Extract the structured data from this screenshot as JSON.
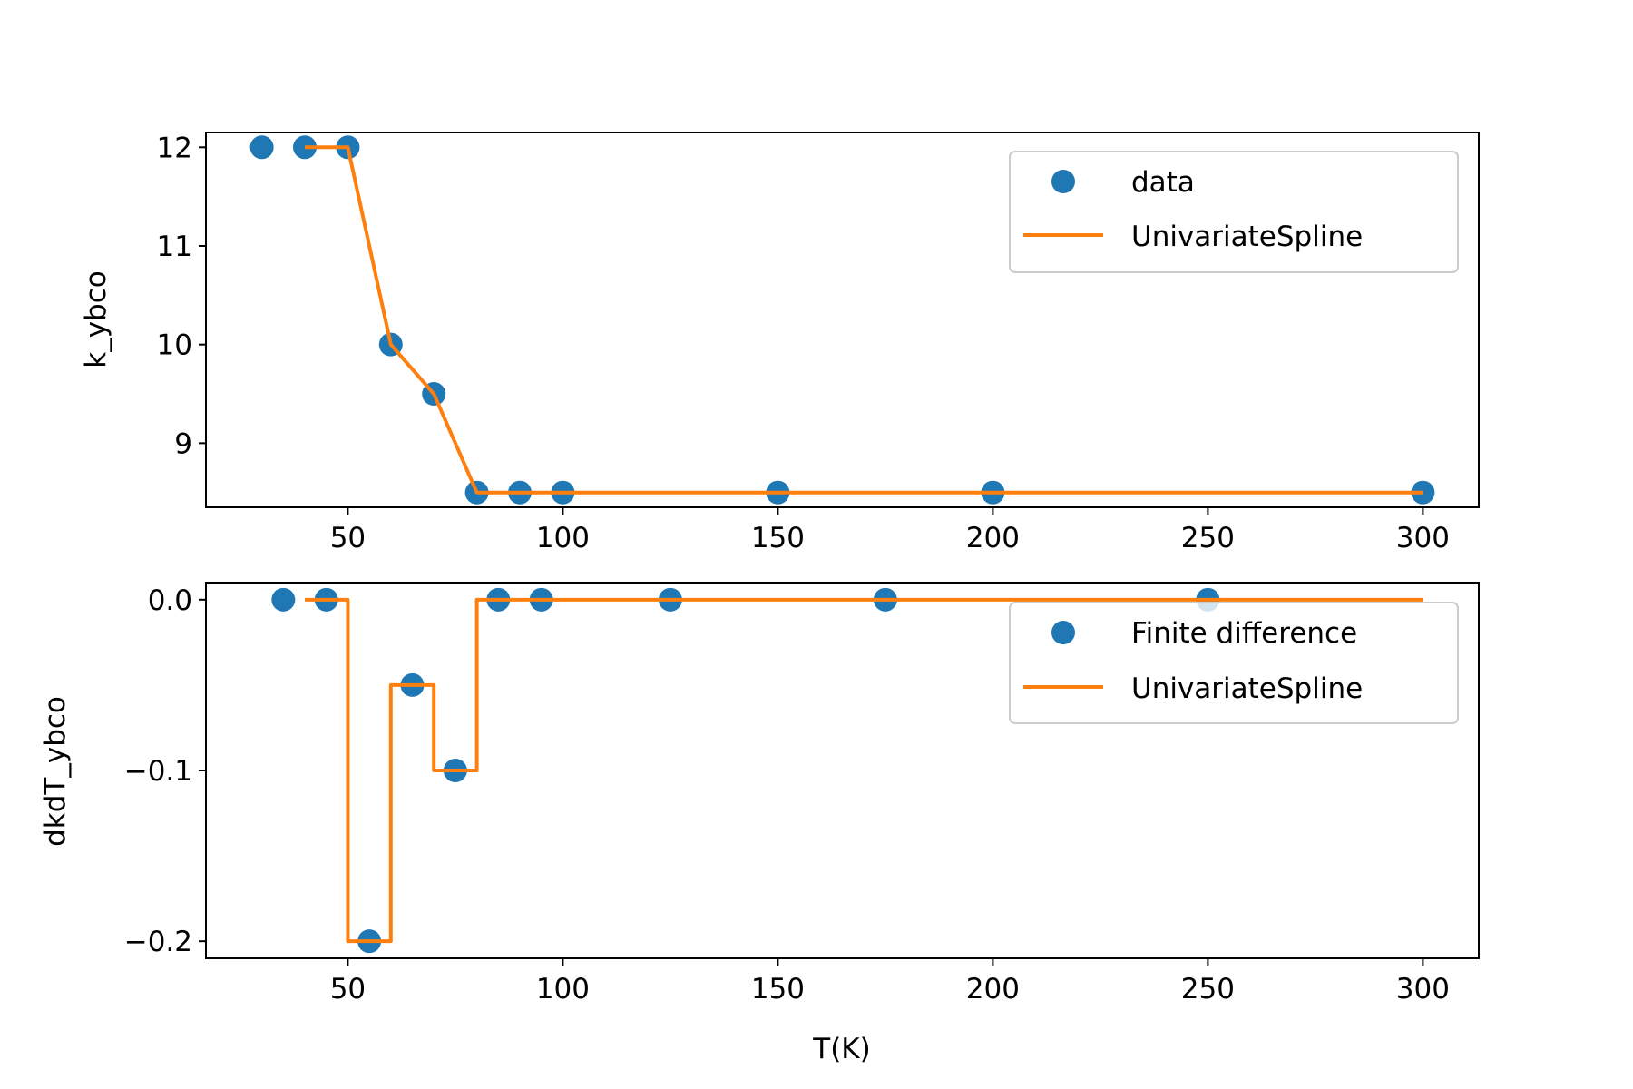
{
  "colors": {
    "scatter": "#1f77b4",
    "line": "#ff7f0e",
    "axes": "#000000",
    "legend_border": "#cccccc"
  },
  "chart_data": [
    {
      "type": "line",
      "title": "",
      "xlabel": "",
      "ylabel": "k_ybco",
      "xlim": [
        17,
        313
      ],
      "ylim": [
        8.35,
        12.15
      ],
      "xticks": [
        50,
        100,
        150,
        200,
        250,
        300
      ],
      "yticks": [
        9,
        10,
        11,
        12
      ],
      "xtick_labels": [
        "50",
        "100",
        "150",
        "200",
        "250",
        "300"
      ],
      "ytick_labels": [
        "9",
        "10",
        "11",
        "12"
      ],
      "legend_position": "upper-right",
      "grid": false,
      "series": [
        {
          "name": "data",
          "kind": "scatter",
          "x": [
            30,
            40,
            50,
            60,
            70,
            80,
            90,
            100,
            150,
            200,
            300
          ],
          "y": [
            12,
            12,
            12,
            10,
            9.5,
            8.5,
            8.5,
            8.5,
            8.5,
            8.5,
            8.5
          ]
        },
        {
          "name": "UnivariateSpline",
          "kind": "line",
          "x": [
            40,
            50,
            60,
            70,
            80,
            90,
            100,
            150,
            200,
            300
          ],
          "y": [
            12,
            12,
            10,
            9.5,
            8.5,
            8.5,
            8.5,
            8.5,
            8.5,
            8.5
          ]
        }
      ]
    },
    {
      "type": "line",
      "title": "",
      "xlabel": "T(K)",
      "ylabel": "dkdT_ybco",
      "xlim": [
        17,
        313
      ],
      "ylim": [
        -0.21,
        0.01
      ],
      "xticks": [
        50,
        100,
        150,
        200,
        250,
        300
      ],
      "yticks": [
        0.0,
        -0.1,
        -0.2
      ],
      "xtick_labels": [
        "50",
        "100",
        "150",
        "200",
        "250",
        "300"
      ],
      "ytick_labels": [
        "0.0",
        "−0.1",
        "−0.2"
      ],
      "legend_position": "upper-right",
      "grid": false,
      "series": [
        {
          "name": "Finite difference",
          "kind": "scatter",
          "x": [
            35,
            45,
            55,
            65,
            75,
            85,
            95,
            125,
            175,
            250
          ],
          "y": [
            0,
            0,
            -0.2,
            -0.05,
            -0.1,
            0,
            0,
            0,
            0,
            0
          ]
        },
        {
          "name": "UnivariateSpline",
          "kind": "step",
          "x": [
            40,
            50,
            50,
            60,
            60,
            70,
            70,
            80,
            80,
            300
          ],
          "y": [
            0,
            0,
            -0.2,
            -0.2,
            -0.05,
            -0.05,
            -0.1,
            -0.1,
            0,
            0
          ]
        }
      ]
    }
  ]
}
